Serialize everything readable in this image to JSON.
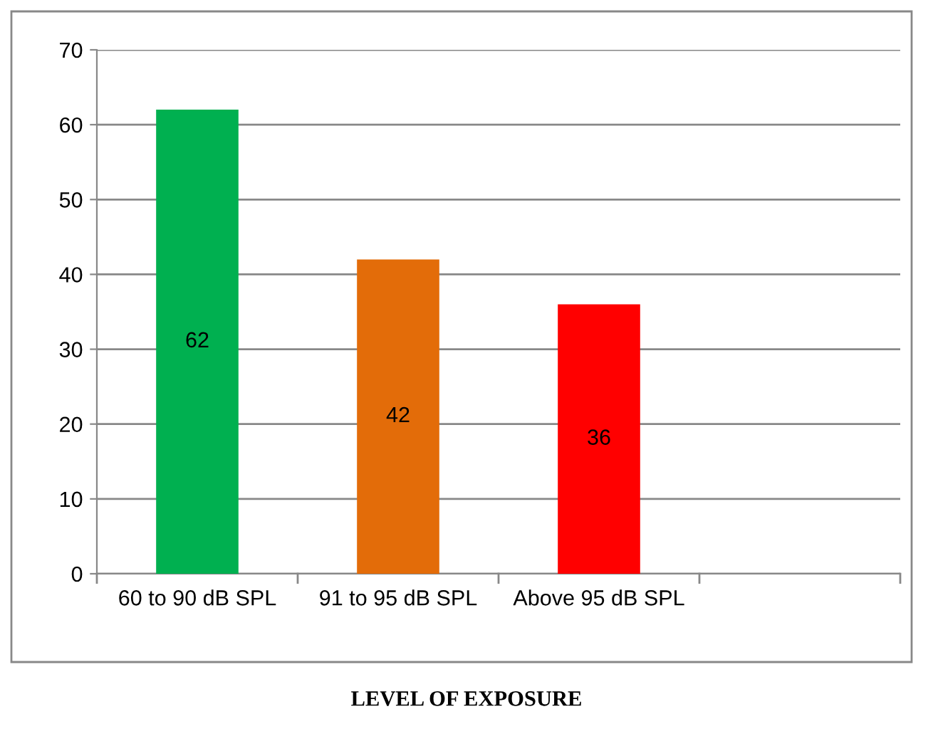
{
  "chart_data": {
    "type": "bar",
    "xlabel": "LEVEL OF EXPOSURE",
    "categories": [
      "60 to 90 dB SPL",
      "91 to 95 dB SPL",
      "Above 95 dB SPL",
      null
    ],
    "values": [
      62,
      42,
      36,
      null
    ],
    "colors": [
      "#00b050",
      "#e36c09",
      "#ff0000",
      null
    ],
    "ylim": [
      0,
      70
    ],
    "yticks": [
      0,
      10,
      20,
      30,
      40,
      50,
      60,
      70
    ],
    "grid": "y",
    "data_labels": true
  }
}
